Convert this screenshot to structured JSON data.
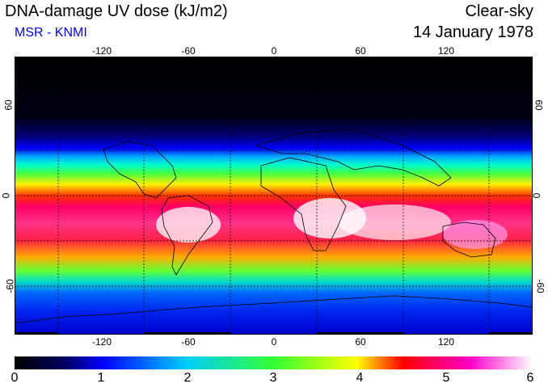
{
  "header": {
    "title": "DNA-damage UV dose (kJ/m2)",
    "source": "MSR - KNMI",
    "condition": "Clear-sky",
    "date": "14 January 1978"
  },
  "colors": {
    "source_text": "#0000ff",
    "gradient": [
      "#000000",
      "#000066",
      "#0000ff",
      "#00ccff",
      "#33ff33",
      "#ffff00",
      "#ff0000",
      "#ff00cc",
      "#ffffff"
    ]
  },
  "map": {
    "lon_labels": [
      "-120",
      "-60",
      "0",
      "60",
      "120"
    ],
    "lon_values": [
      -120,
      -60,
      0,
      60,
      120
    ],
    "lat_labels": [
      "60",
      "0",
      "-60"
    ],
    "lat_values": [
      60,
      0,
      -60
    ],
    "lon_range": [
      -180,
      180
    ],
    "lat_range": [
      -90,
      90
    ]
  },
  "colorbar": {
    "ticks": [
      "0",
      "1",
      "2",
      "3",
      "4",
      "5",
      "6"
    ],
    "min": 0,
    "max": 6,
    "unit": "kJ/m2"
  }
}
